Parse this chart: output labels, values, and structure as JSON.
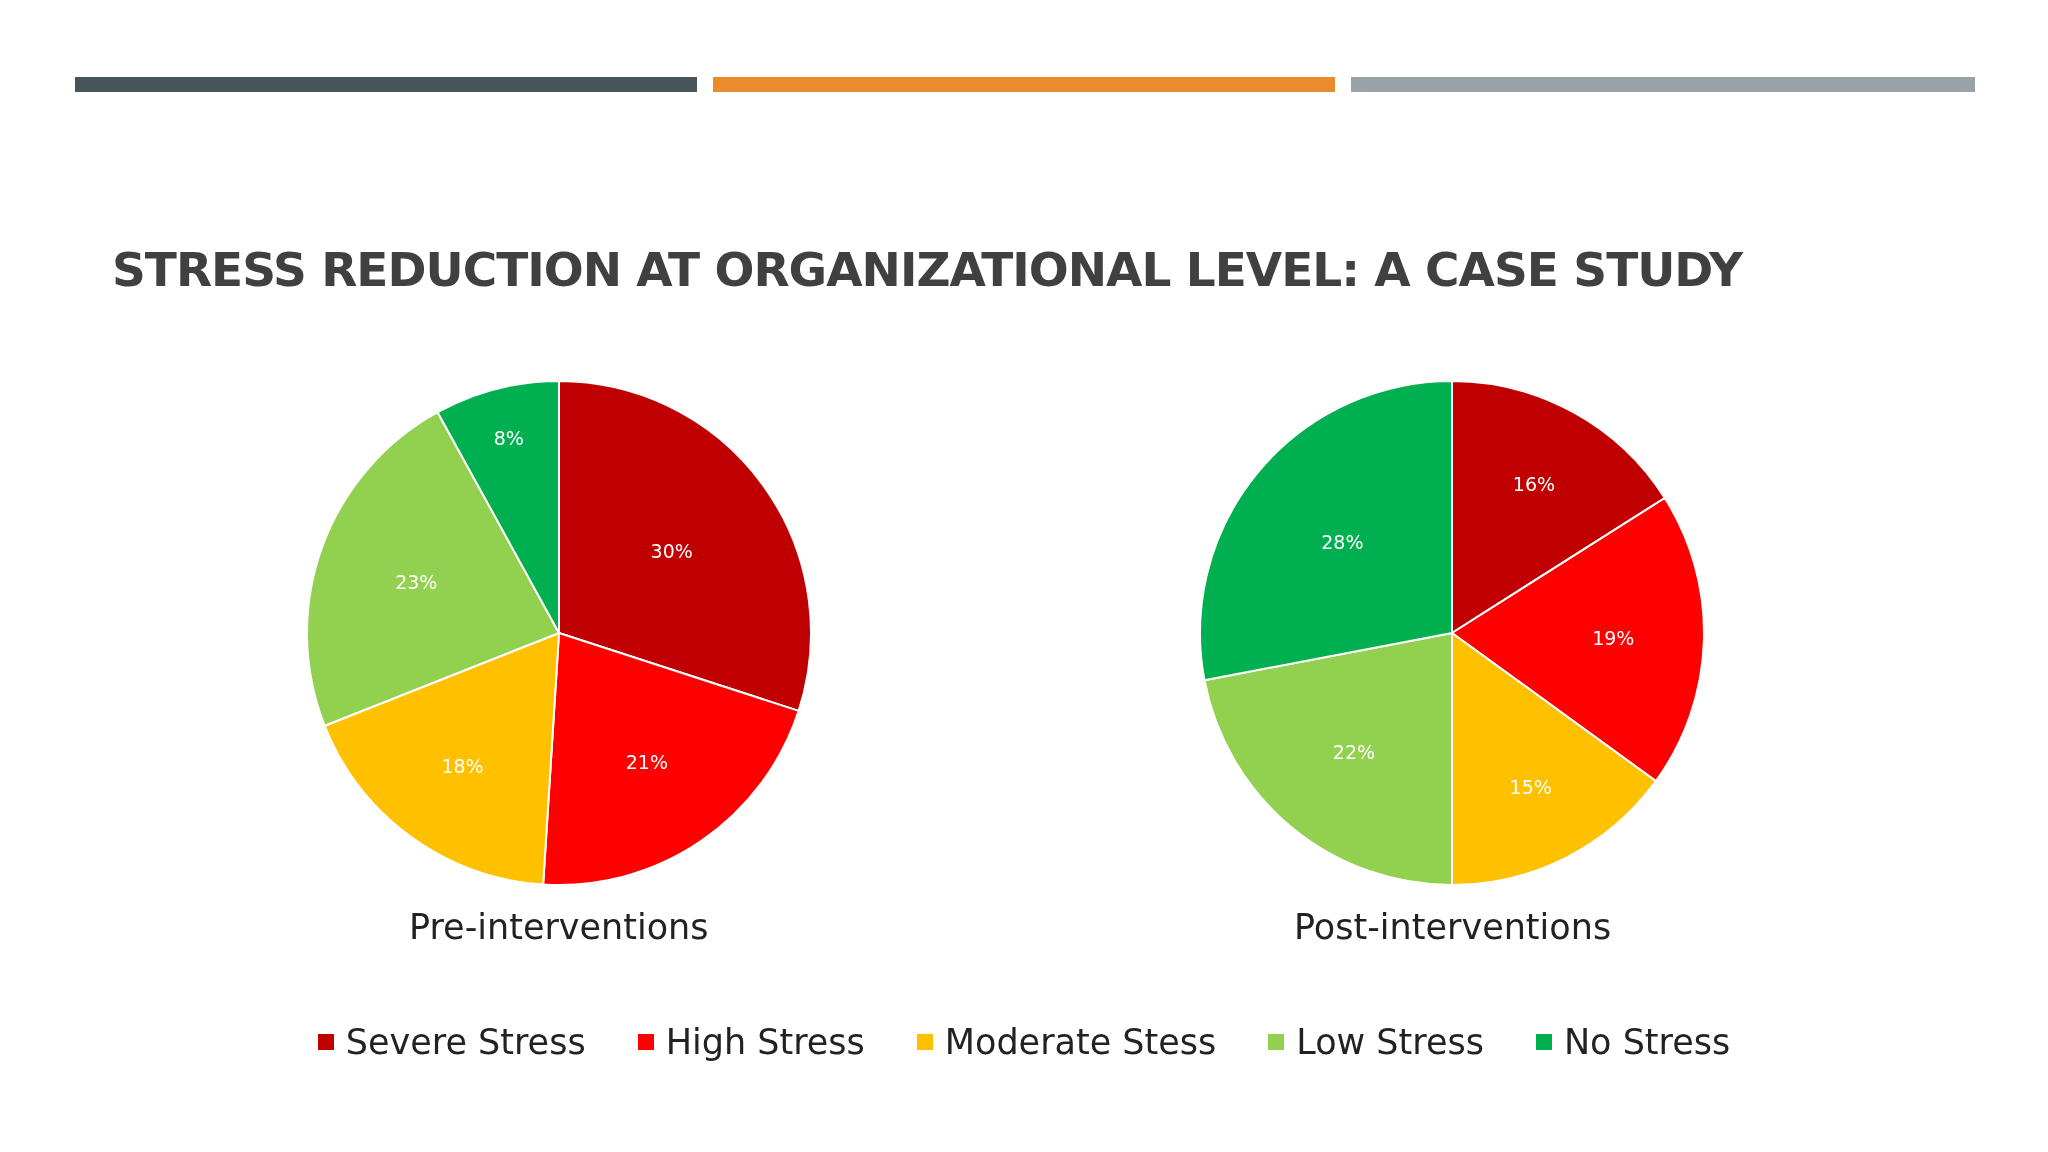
{
  "chart_data": [
    {
      "type": "pie",
      "title": "STRESS REDUCTION AT ORGANIZATIONAL LEVEL: A CASE STUDY",
      "xlabel": "Pre-interventions",
      "legend": "bottom",
      "categories": [
        "Severe Stress",
        "High Stress",
        "Moderate Stess",
        "Low Stress",
        "No Stress"
      ],
      "values": [
        30,
        21,
        18,
        23,
        8
      ],
      "value_labels": [
        "30%",
        "21%",
        "18%",
        "23%",
        "8%"
      ],
      "colors": [
        "#c00000",
        "#ff0000",
        "#ffc000",
        "#92d050",
        "#00b050"
      ]
    },
    {
      "type": "pie",
      "xlabel": "Post-interventions",
      "values": [
        16,
        19,
        15,
        22,
        28
      ],
      "value_labels": [
        "16%",
        "19%",
        "15%",
        "22%",
        "28%"
      ],
      "colors": [
        "#c00000",
        "#ff0000",
        "#ffc000",
        "#92d050",
        "#00b050"
      ]
    }
  ]
}
